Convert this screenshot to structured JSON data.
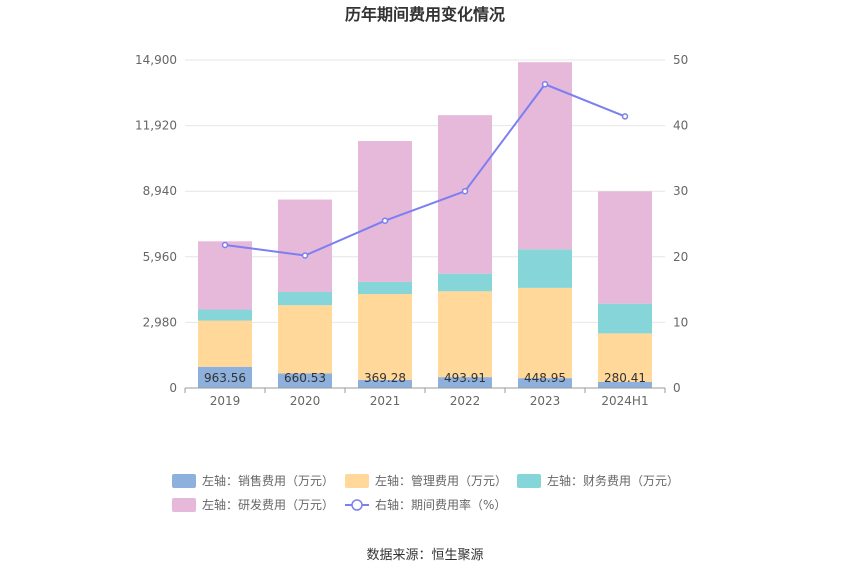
{
  "chart_data": {
    "type": "bar",
    "title": "历年期间费用变化情况",
    "categories": [
      "2019",
      "2020",
      "2021",
      "2022",
      "2023",
      "2024H1"
    ],
    "left_axis": {
      "ticks": [
        "0",
        "2,980",
        "5,960",
        "8,940",
        "11,920",
        "14,900"
      ],
      "ylim": [
        0,
        14900
      ]
    },
    "right_axis": {
      "ticks": [
        "0",
        "10",
        "20",
        "30",
        "40",
        "50"
      ],
      "ylim": [
        0,
        50
      ]
    },
    "series": [
      {
        "name": "左轴：销售费用（万元）",
        "color": "#8eb0dc",
        "values": [
          963.56,
          660.53,
          369.28,
          493.91,
          448.95,
          280.41
        ],
        "labels": [
          "963.56",
          "660.53",
          "369.28",
          "493.91",
          "448.95",
          "280.41"
        ]
      },
      {
        "name": "左轴：管理费用（万元）",
        "color": "#ffd89a",
        "values": [
          2100,
          3100,
          3900,
          3900,
          4100,
          2200
        ]
      },
      {
        "name": "左轴：财务费用（万元）",
        "color": "#86d5d8",
        "values": [
          500,
          600,
          550,
          800,
          1750,
          1350
        ]
      },
      {
        "name": "左轴：研发费用（万元）",
        "color": "#e6b8d9",
        "values": [
          3100,
          4200,
          6400,
          7200,
          8500,
          5100
        ]
      }
    ],
    "line_series": {
      "name": "右轴：期间费用率（%）",
      "color": "#7b7ff0",
      "values": [
        21.8,
        20.2,
        25.5,
        30.0,
        46.3,
        41.4
      ]
    },
    "source": "数据来源：恒生聚源"
  }
}
